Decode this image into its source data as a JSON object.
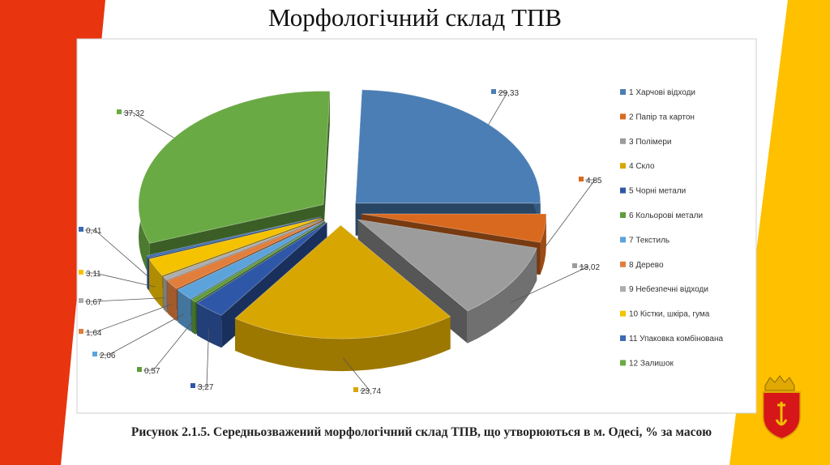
{
  "slide": {
    "title": "Морфологічний склад ТПВ",
    "caption": "Рисунок 2.1.5. Середньозважений морфологічний склад ТПВ, що утворюються в м. Одесі, % за масою",
    "colors": {
      "left_band": "#e8340f",
      "right_band": "#ffc000"
    },
    "logo_icon": "odesa-coat-of-arms-icon"
  },
  "chart_data": {
    "type": "pie",
    "title": "",
    "style": "3d-exploded",
    "legend_position": "right",
    "series": [
      {
        "name": "1 Харчові відходи",
        "value": 29.33,
        "label": "29,33",
        "color": "#4a7eb5"
      },
      {
        "name": "2 Папір та картон",
        "value": 4.85,
        "label": "4,85",
        "color": "#d9691f"
      },
      {
        "name": "3 Полімери",
        "value": 13.02,
        "label": "13,02",
        "color": "#9c9c9c"
      },
      {
        "name": "4 Скло",
        "value": 23.74,
        "label": "23,74",
        "color": "#d8a600"
      },
      {
        "name": "5 Чорні метали",
        "value": 3.27,
        "label": "3,27",
        "color": "#2f57a8"
      },
      {
        "name": "6 Кольорові метали",
        "value": 0.57,
        "label": "0,57",
        "color": "#5e9d3b"
      },
      {
        "name": "7 Текстиль",
        "value": 2.06,
        "label": "2,06",
        "color": "#5da3db"
      },
      {
        "name": "8 Дерево",
        "value": 1.64,
        "label": "1,64",
        "color": "#e27e3c"
      },
      {
        "name": "9 Небезпечні відходи",
        "value": 0.67,
        "label": "0,67",
        "color": "#adadad"
      },
      {
        "name": "10 Кістки, шкіра, гума",
        "value": 3.11,
        "label": "3,11",
        "color": "#f5c200"
      },
      {
        "name": "11 Упаковка комбінована",
        "value": 0.41,
        "label": "0,41",
        "color": "#3c6bb3"
      },
      {
        "name": "12 Залишок",
        "value": 37.32,
        "label": "37,32",
        "color": "#6aaa44"
      }
    ]
  }
}
